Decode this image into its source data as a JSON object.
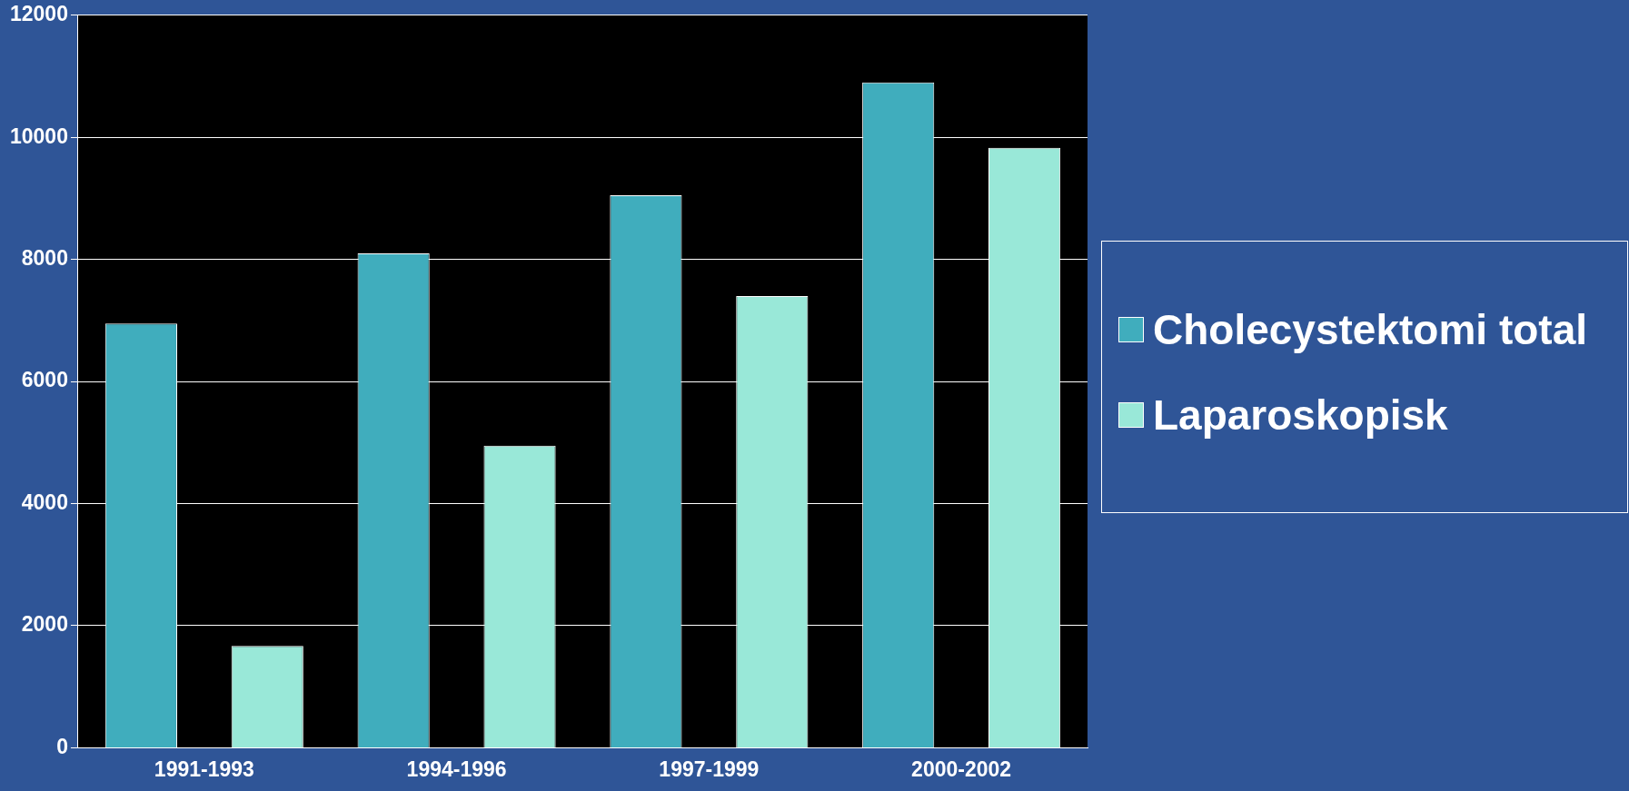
{
  "chart_data": {
    "type": "bar",
    "categories": [
      "1991-1993",
      "1994-1996",
      "1997-1999",
      "2000-2002"
    ],
    "series": [
      {
        "name": "Cholecystektomi total",
        "color": "#40adbd",
        "values": [
          6950,
          8100,
          9050,
          10900
        ]
      },
      {
        "name": "Laparoskopisk",
        "color": "#99e8d8",
        "values": [
          1670,
          4950,
          7400,
          9830
        ]
      }
    ],
    "ylim": [
      0,
      12000
    ],
    "yticks": [
      0,
      2000,
      4000,
      6000,
      8000,
      10000,
      12000
    ],
    "grid": "y",
    "legend": "right"
  }
}
